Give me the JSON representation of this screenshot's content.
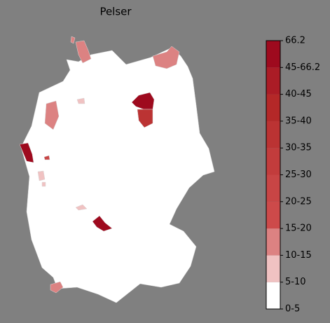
{
  "title": "Pelser",
  "colorbar": {
    "labels": [
      "0-5",
      "5-10",
      "10-15",
      "15-20",
      "20-25",
      "25-30",
      "30-35",
      "35-40",
      "40-45",
      "45-66.2",
      "66.2"
    ],
    "colors": [
      "#ffffff",
      "#f0c2c2",
      "#dc8282",
      "#cd4a4a",
      "#c84545",
      "#c23c3c",
      "#bb3333",
      "#b42828",
      "#ab1c26",
      "#9e0a1e"
    ]
  }
}
